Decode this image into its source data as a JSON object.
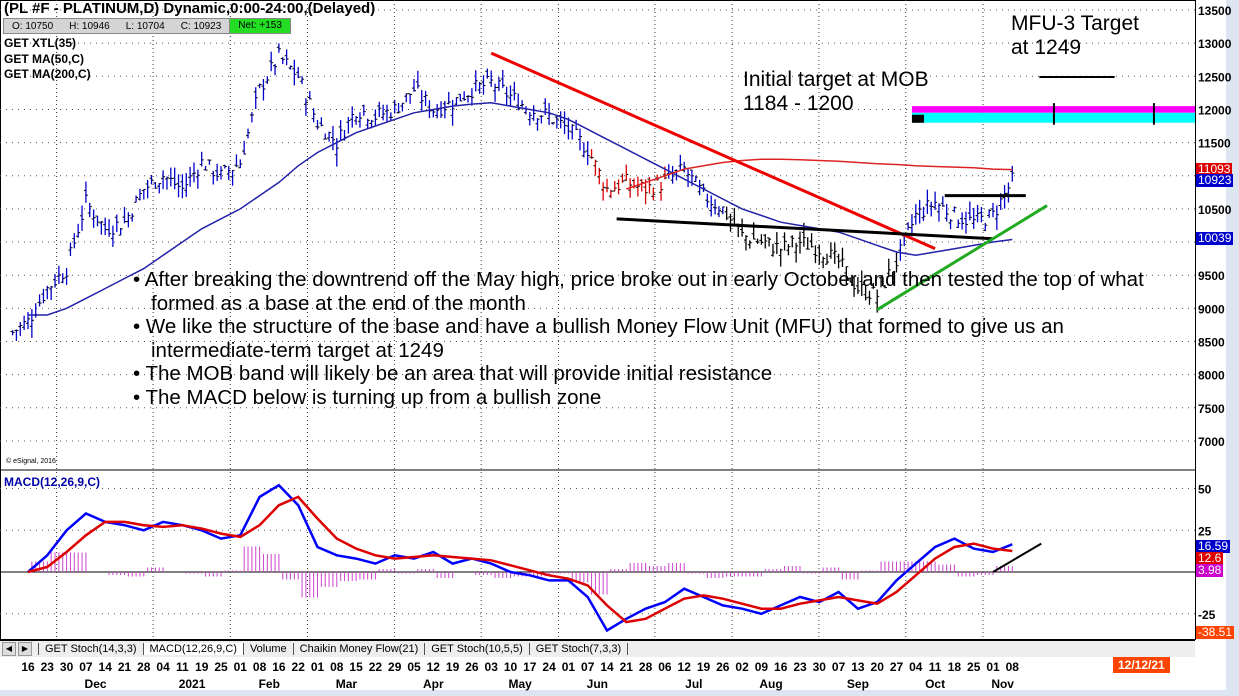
{
  "header": {
    "title": "(PL #F - PLATINUM,D) Dynamic,0:00-24:00,(Delayed)",
    "open": "O: 10750",
    "high": "H: 10946",
    "low": "L: 10704",
    "close": "C: 10923",
    "net": "Net: +153"
  },
  "studies": [
    "GET XTL(35)",
    "GET MA(50,C)",
    "GET MA(200,C)"
  ],
  "copyright": "© eSignal, 2016",
  "macd_label": "MACD(12,26,9,C)",
  "annotations": {
    "mfu_target": [
      "MFU-3 Target",
      "at 1249"
    ],
    "mob_target": [
      "Initial target at MOB",
      "1184 - 1200"
    ],
    "bullets": [
      "• After breaking the downtrend off the May high, price broke out in early October and then tested the top of what formed as a base at the end of the month",
      "• We like the structure of the base and have a bullish Money Flow Unit (MFU) that formed to give us an intermediate-term target at 1249",
      "• The MOB band will likely be an area that will provide initial resistance",
      "• The MACD below is turning up from a bullish zone"
    ]
  },
  "tabs": [
    "GET Stoch(14,3,3)",
    "MACD(12,26,9,C)",
    "Volume",
    "Chaikin Money Flow(21)",
    "GET Stoch(10,5,5)",
    "GET Stoch(7,3,3)"
  ],
  "date_badge": "12/12/21",
  "price_tags": [
    {
      "text": "11093",
      "color": "#e00000",
      "value": 11093
    },
    {
      "text": "10923",
      "color": "#0000cc",
      "value": 10923
    },
    {
      "text": "10039",
      "color": "#0000cc",
      "value": 10039
    }
  ],
  "macd_tags": [
    {
      "text": "16.59",
      "color": "#0000cc",
      "value": 16.59
    },
    {
      "text": "12.6",
      "color": "#e00000",
      "value": 12.6
    },
    {
      "text": "3.98",
      "color": "#cc00cc",
      "value": 3.98
    },
    {
      "text": "-38.51",
      "color": "#ff4400",
      "value": -38.51
    }
  ],
  "chart_data": {
    "type": "line",
    "x_ticks": [
      "16",
      "23",
      "30",
      "07",
      "14",
      "21",
      "28",
      "04",
      "11",
      "19",
      "25",
      "01",
      "08",
      "16",
      "22",
      "01",
      "08",
      "15",
      "22",
      "29",
      "05",
      "12",
      "19",
      "26",
      "03",
      "10",
      "17",
      "24",
      "01",
      "07",
      "14",
      "21",
      "28",
      "06",
      "12",
      "19",
      "26",
      "02",
      "09",
      "16",
      "23",
      "30",
      "07",
      "13",
      "20",
      "27",
      "04",
      "11",
      "18",
      "25",
      "01",
      "08"
    ],
    "months": [
      {
        "label": "Dec",
        "week": 3.5
      },
      {
        "label": "2021",
        "week": 8.5
      },
      {
        "label": "Feb",
        "week": 12.5
      },
      {
        "label": "Mar",
        "week": 16.5
      },
      {
        "label": "Apr",
        "week": 21
      },
      {
        "label": "May",
        "week": 25.5
      },
      {
        "label": "Jun",
        "week": 29.5
      },
      {
        "label": "Jul",
        "week": 34.5
      },
      {
        "label": "Aug",
        "week": 38.5
      },
      {
        "label": "Sep",
        "week": 43
      },
      {
        "label": "Oct",
        "week": 47
      },
      {
        "label": "Nov",
        "week": 50.5
      }
    ],
    "month_starts": [
      2,
      7,
      11,
      15,
      19.5,
      24,
      28,
      33,
      37,
      41.5,
      46,
      50
    ],
    "price_axis": {
      "ylim": [
        6600,
        13600
      ],
      "ticks": [
        13500,
        13000,
        12500,
        12000,
        11500,
        10500,
        9500,
        9000,
        8500,
        8000,
        7500,
        7000
      ]
    },
    "macd_axis": {
      "ylim": [
        -38,
        58
      ],
      "ticks": [
        50,
        25,
        -25
      ]
    },
    "series": [
      {
        "name": "PLATINUM",
        "color": "#0000cc",
        "values": [
          8800,
          9300,
          9600,
          10600,
          10200,
          10300,
          10800,
          11000,
          10800,
          11200,
          11000,
          11200,
          12300,
          12800,
          12500,
          11800,
          11500,
          12000,
          11900,
          12000,
          12300,
          12000,
          12100,
          12300,
          12400,
          12200,
          12000,
          11900,
          11700,
          11400,
          10800,
          10900,
          10800,
          10900,
          11100,
          10700,
          10500,
          10100,
          10000,
          9900,
          10000,
          9900,
          9700,
          9300,
          9200,
          9700,
          10400,
          10600,
          10400,
          10300,
          10400,
          10923
        ]
      },
      {
        "name": "MA(50,C)",
        "color": "#2222aa",
        "values": [
          8900,
          8900,
          9000,
          9150,
          9300,
          9450,
          9600,
          9800,
          10000,
          10200,
          10350,
          10500,
          10700,
          10900,
          11150,
          11350,
          11500,
          11650,
          11750,
          11850,
          11950,
          12000,
          12050,
          12080,
          12100,
          12050,
          12000,
          11950,
          11850,
          11700,
          11550,
          11400,
          11250,
          11100,
          10950,
          10800,
          10650,
          10500,
          10400,
          10300,
          10250,
          10200,
          10150,
          10050,
          9950,
          9850,
          9800,
          9850,
          9900,
          9950,
          10000,
          10039
        ]
      },
      {
        "name": "MA(200,C)",
        "color": "#dd2222",
        "values": [
          null,
          null,
          null,
          null,
          null,
          null,
          null,
          null,
          null,
          null,
          null,
          null,
          null,
          null,
          null,
          null,
          null,
          null,
          null,
          null,
          null,
          null,
          null,
          null,
          null,
          null,
          null,
          null,
          null,
          null,
          null,
          10800,
          10900,
          11000,
          11100,
          11150,
          11200,
          11230,
          11250,
          11250,
          11240,
          11230,
          11220,
          11200,
          11180,
          11170,
          11150,
          11140,
          11130,
          11120,
          11100,
          11093
        ]
      },
      {
        "name": "MACD",
        "color": "#0000ff",
        "values": [
          0,
          10,
          25,
          35,
          30,
          28,
          25,
          30,
          28,
          25,
          20,
          22,
          45,
          52,
          40,
          15,
          10,
          8,
          5,
          10,
          8,
          12,
          5,
          8,
          5,
          0,
          -2,
          -5,
          -5,
          -15,
          -35,
          -28,
          -22,
          -18,
          -10,
          -15,
          -20,
          -22,
          -25,
          -20,
          -15,
          -18,
          -12,
          -22,
          -18,
          -5,
          5,
          15,
          20,
          14,
          12,
          16.59
        ]
      },
      {
        "name": "Signal",
        "color": "#dd0000",
        "values": [
          0,
          3,
          12,
          22,
          30,
          30,
          28,
          27,
          28,
          26,
          23,
          21,
          28,
          40,
          45,
          32,
          20,
          14,
          10,
          8,
          9,
          10,
          9,
          8,
          7,
          4,
          1,
          -2,
          -4,
          -8,
          -20,
          -30,
          -28,
          -22,
          -16,
          -14,
          -16,
          -19,
          -22,
          -22,
          -19,
          -17,
          -15,
          -17,
          -19,
          -12,
          -2,
          8,
          15,
          17,
          14,
          12.6
        ]
      }
    ],
    "trendlines": [
      {
        "color": "#ee0000",
        "from": {
          "week": 24,
          "value": 12850
        },
        "to": {
          "week": 47,
          "value": 9900
        }
      },
      {
        "color": "#000000",
        "from": {
          "week": 30.5,
          "value": 10350
        },
        "to": {
          "week": 50,
          "value": 10050
        }
      },
      {
        "color": "#000000",
        "from": {
          "week": 47.5,
          "value": 10700
        },
        "to": {
          "week": 51.7,
          "value": 10700
        }
      },
      {
        "color": "#22aa22",
        "from": {
          "week": 44,
          "value": 8980
        },
        "to": {
          "week": 52.8,
          "value": 10550
        }
      }
    ],
    "macd_trendline": {
      "color": "#000000",
      "from": {
        "week": 50,
        "value": 0
      },
      "to": {
        "week": 52.5,
        "value": 17
      }
    },
    "mob_band": {
      "magenta": [
        11950,
        12050
      ],
      "cyan": [
        11800,
        11950
      ],
      "start_week": 45.8
    },
    "mfu_target_line": {
      "value": 12490,
      "from_week": 52.4,
      "to_week": 56.3
    }
  }
}
